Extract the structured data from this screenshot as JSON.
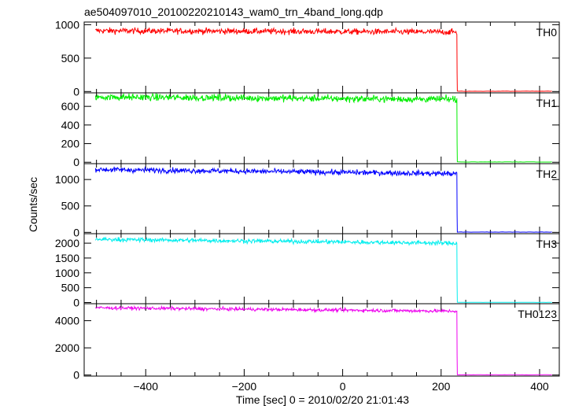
{
  "chart_data": {
    "type": "line",
    "title": "ae504097010_20100220210143_wam0_trn_4band_long.qdp",
    "xlabel": "Time [sec] 0 = 2010/02/20 21:01:43",
    "ylabel": "Counts/sec",
    "xlim": [
      -525,
      440
    ],
    "x_ticks": [
      -400,
      -200,
      0,
      200,
      400
    ],
    "x_tick_labels": [
      "−400",
      "−200",
      "0",
      "200",
      "400"
    ],
    "x_data_range": [
      -502,
      425
    ],
    "drop_time": 232,
    "panels": [
      {
        "name": "TH0",
        "color": "#ff0000",
        "ylim": [
          -20,
          1040
        ],
        "yticks": [
          0,
          500,
          1000
        ],
        "level_start": 910,
        "level_end": 890,
        "noise": 22,
        "after_drop": 4
      },
      {
        "name": "TH1",
        "color": "#00ee00",
        "ylim": [
          -15,
          745
        ],
        "yticks": [
          0,
          200,
          400,
          600
        ],
        "level_start": 700,
        "level_end": 675,
        "noise": 18,
        "after_drop": 3
      },
      {
        "name": "TH2",
        "color": "#0000ff",
        "ylim": [
          -25,
          1300
        ],
        "yticks": [
          0,
          500,
          1000
        ],
        "level_start": 1190,
        "level_end": 1110,
        "noise": 25,
        "after_drop": 5
      },
      {
        "name": "TH3",
        "color": "#00eeee",
        "ylim": [
          -40,
          2320
        ],
        "yticks": [
          0,
          500,
          1000,
          1500,
          2000
        ],
        "level_start": 2130,
        "level_end": 2000,
        "noise": 35,
        "after_drop": 6
      },
      {
        "name": "TH0123",
        "color": "#ee00ee",
        "ylim": [
          -80,
          5250
        ],
        "yticks": [
          0,
          2000,
          4000
        ],
        "level_start": 4950,
        "level_end": 4700,
        "noise": 60,
        "after_drop": 15
      }
    ]
  }
}
